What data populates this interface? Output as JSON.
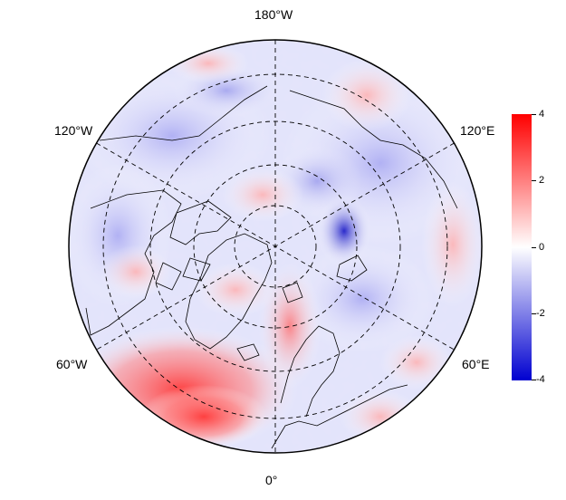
{
  "map": {
    "projection": "north-polar-stereographic",
    "longitude_labels": {
      "top": "180°W",
      "bottom": "0°",
      "upper_left": "120°W",
      "upper_right": "120°E",
      "lower_left": "60°W",
      "lower_right": "60°E"
    },
    "graticule": "dashed",
    "coastlines": true,
    "field_colormap": "blue-white-red"
  },
  "colorbar": {
    "ticks": [
      "4",
      "2",
      "0",
      "-2",
      "-4"
    ],
    "max": 4,
    "min": -4,
    "colors": {
      "max": "#ff0000",
      "mid": "#ffffff",
      "min": "#0000d0"
    }
  }
}
